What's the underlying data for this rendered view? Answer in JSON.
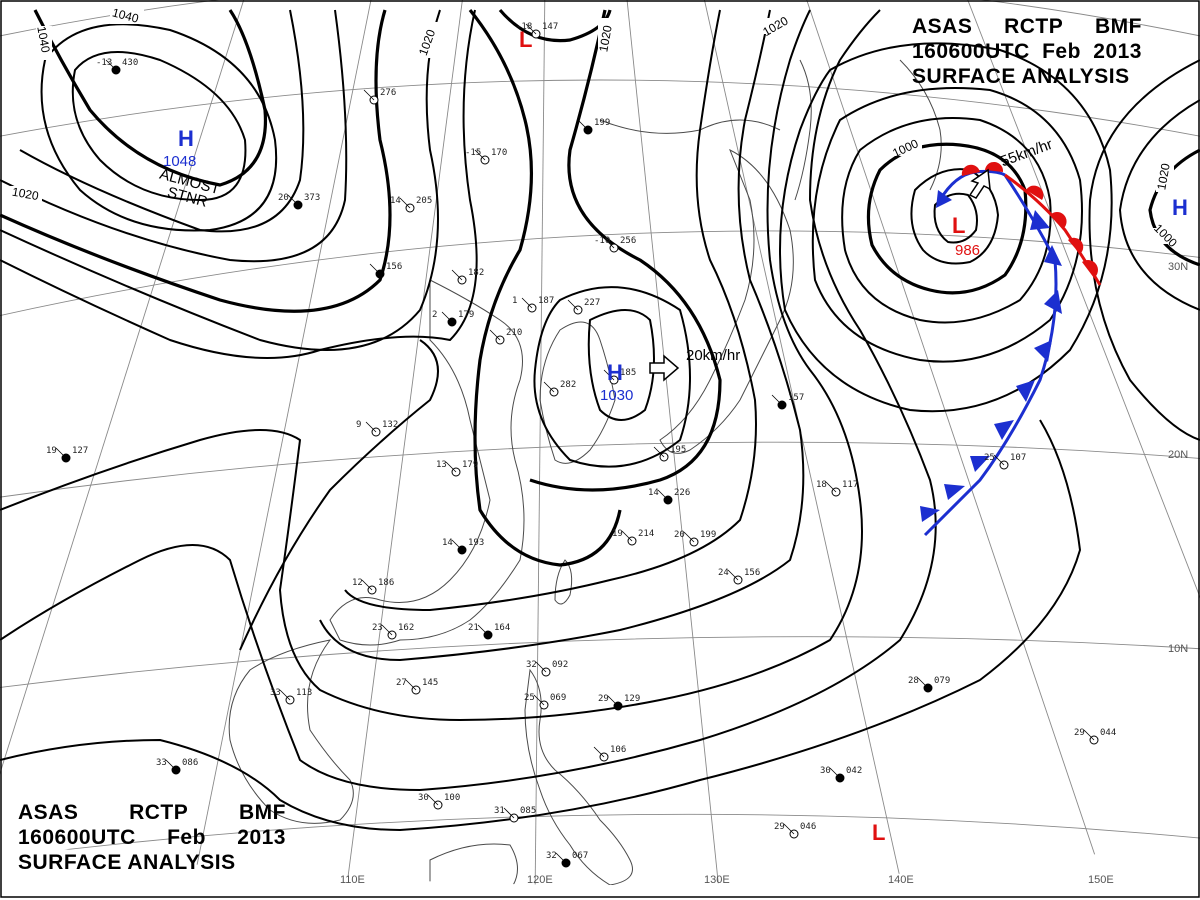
{
  "header": {
    "line1": [
      "ASAS",
      "RCTP",
      "BMF"
    ],
    "line2": [
      "160600UTC",
      "Feb",
      "2013"
    ],
    "line3": "SURFACE ANALYSIS"
  },
  "isobars": [
    "1040",
    "1040",
    "1020",
    "1020",
    "1020",
    "1020",
    "1020",
    "1000"
  ],
  "pressure_centers": [
    {
      "type": "H",
      "value": "1048",
      "color": "#1c2fd0",
      "note": "ALMOST STNR"
    },
    {
      "type": "H",
      "value": "1030",
      "color": "#1c2fd0",
      "motion": "20km/hr"
    },
    {
      "type": "L",
      "value": "986",
      "color": "#e01010",
      "motion": "55km/hr"
    },
    {
      "type": "L",
      "value": "",
      "color": "#e01010"
    },
    {
      "type": "L",
      "value": "",
      "color": "#e01010"
    },
    {
      "type": "H",
      "value": "",
      "color": "#1c2fd0"
    }
  ],
  "longitudes": [
    "110E",
    "120E",
    "130E",
    "140E",
    "150E"
  ],
  "latitudes": [
    "30N",
    "20N",
    "10N"
  ],
  "colors": {
    "high": "#1c2fd0",
    "low": "#e01010",
    "cold_front": "#1c2fd0",
    "warm_front": "#e01010"
  },
  "station_plots": [
    {
      "pressure": "430",
      "temp": "-13"
    },
    {
      "pressure": "147",
      "temp": "-18"
    },
    {
      "pressure": "276",
      "temp": ""
    },
    {
      "pressure": "373",
      "temp": "20"
    },
    {
      "pressure": "205",
      "temp": "14"
    },
    {
      "pressure": "170",
      "temp": "-15"
    },
    {
      "pressure": "199",
      "temp": ""
    },
    {
      "pressure": "256",
      "temp": "-10"
    },
    {
      "pressure": "182",
      "temp": ""
    },
    {
      "pressure": "156",
      "temp": ""
    },
    {
      "pressure": "187",
      "temp": "1"
    },
    {
      "pressure": "227",
      "temp": ""
    },
    {
      "pressure": "179",
      "temp": "2"
    },
    {
      "pressure": "210",
      "temp": ""
    },
    {
      "pressure": "132",
      "temp": "9"
    },
    {
      "pressure": "127",
      "temp": "19"
    },
    {
      "pressure": "185",
      "temp": ""
    },
    {
      "pressure": "179",
      "temp": "13"
    },
    {
      "pressure": "193",
      "temp": "14"
    },
    {
      "pressure": "186",
      "temp": "12"
    },
    {
      "pressure": "162",
      "temp": "23"
    },
    {
      "pressure": "164",
      "temp": "21"
    },
    {
      "pressure": "145",
      "temp": "27"
    },
    {
      "pressure": "113",
      "temp": "33"
    },
    {
      "pressure": "086",
      "temp": "33"
    },
    {
      "pressure": "100",
      "temp": "30"
    },
    {
      "pressure": "085",
      "temp": "31"
    },
    {
      "pressure": "067",
      "temp": "32"
    },
    {
      "pressure": "092",
      "temp": "32"
    },
    {
      "pressure": "069",
      "temp": "25"
    },
    {
      "pressure": "129",
      "temp": "29"
    },
    {
      "pressure": "106",
      "temp": ""
    },
    {
      "pressure": "214",
      "temp": "19"
    },
    {
      "pressure": "226",
      "temp": "14"
    },
    {
      "pressure": "199",
      "temp": "20"
    },
    {
      "pressure": "156",
      "temp": "24"
    },
    {
      "pressure": "157",
      "temp": ""
    },
    {
      "pressure": "117",
      "temp": "18"
    },
    {
      "pressure": "107",
      "temp": "25"
    },
    {
      "pressure": "079",
      "temp": "28"
    },
    {
      "pressure": "044",
      "temp": "29"
    },
    {
      "pressure": "046",
      "temp": "29"
    },
    {
      "pressure": "042",
      "temp": "30"
    },
    {
      "pressure": "282",
      "temp": ""
    },
    {
      "pressure": "195",
      "temp": ""
    }
  ]
}
